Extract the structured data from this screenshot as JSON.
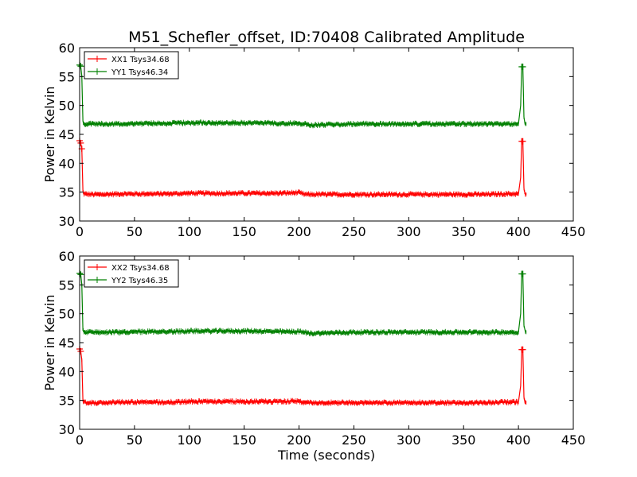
{
  "title": "M51_Schefler_offset, ID:70408 Calibrated Amplitude",
  "xlabel": "Time (seconds)",
  "colors": {
    "xx": "#ff0000",
    "yy": "#008000"
  },
  "chart_data": [
    {
      "type": "line",
      "ylabel": "Power in Kelvin",
      "xlim": [
        0,
        450
      ],
      "ylim": [
        30,
        60
      ],
      "xticks": [
        "0",
        "50",
        "100",
        "150",
        "200",
        "250",
        "300",
        "350",
        "400",
        "450"
      ],
      "yticks": [
        "30",
        "35",
        "40",
        "45",
        "50",
        "55",
        "60"
      ],
      "legend_position": "top-left",
      "series": [
        {
          "name": "XX1 Tsys34.68",
          "color": "#ff0000",
          "x": [
            0,
            1,
            2,
            3,
            4,
            10,
            20,
            40,
            60,
            80,
            100,
            120,
            140,
            160,
            180,
            200,
            205,
            210,
            230,
            250,
            270,
            290,
            310,
            330,
            350,
            370,
            390,
            400,
            402,
            403,
            404,
            405,
            406,
            407
          ],
          "y": [
            43.9,
            43.5,
            42.5,
            35.0,
            34.7,
            34.6,
            34.6,
            34.7,
            34.7,
            34.7,
            34.8,
            34.8,
            34.8,
            34.8,
            34.8,
            34.9,
            34.6,
            34.6,
            34.6,
            34.6,
            34.6,
            34.6,
            34.6,
            34.6,
            34.6,
            34.6,
            34.7,
            34.7,
            37.5,
            43.8,
            43.8,
            35.5,
            34.8,
            34.6
          ]
        },
        {
          "name": "YY1 Tsys46.34",
          "color": "#008000",
          "x": [
            0,
            1,
            2,
            3,
            4,
            10,
            20,
            40,
            60,
            80,
            100,
            120,
            140,
            160,
            180,
            200,
            205,
            210,
            230,
            250,
            270,
            290,
            310,
            330,
            350,
            370,
            390,
            400,
            402,
            403,
            404,
            405,
            406,
            407
          ],
          "y": [
            57.0,
            56.8,
            55.0,
            47.2,
            46.8,
            46.8,
            46.8,
            46.8,
            46.9,
            46.9,
            47.0,
            47.0,
            47.0,
            47.0,
            46.9,
            46.9,
            46.8,
            46.6,
            46.7,
            46.8,
            46.8,
            46.8,
            46.8,
            46.8,
            46.8,
            46.8,
            46.8,
            46.8,
            50.0,
            56.7,
            56.7,
            48.0,
            47.0,
            46.8
          ]
        }
      ]
    },
    {
      "type": "line",
      "ylabel": "Power in Kelvin",
      "xlim": [
        0,
        450
      ],
      "ylim": [
        30,
        60
      ],
      "xticks": [
        "0",
        "50",
        "100",
        "150",
        "200",
        "250",
        "300",
        "350",
        "400",
        "450"
      ],
      "yticks": [
        "30",
        "35",
        "40",
        "45",
        "50",
        "55",
        "60"
      ],
      "legend_position": "top-left",
      "series": [
        {
          "name": "XX2 Tsys34.68",
          "color": "#ff0000",
          "x": [
            0,
            1,
            2,
            3,
            4,
            10,
            20,
            40,
            60,
            80,
            100,
            120,
            140,
            160,
            180,
            200,
            205,
            210,
            230,
            250,
            270,
            290,
            310,
            330,
            350,
            370,
            390,
            400,
            402,
            403,
            404,
            405,
            406,
            407
          ],
          "y": [
            43.9,
            43.5,
            42.0,
            35.0,
            34.7,
            34.6,
            34.6,
            34.7,
            34.7,
            34.7,
            34.8,
            34.8,
            34.8,
            34.8,
            34.8,
            34.9,
            34.6,
            34.6,
            34.6,
            34.6,
            34.6,
            34.6,
            34.6,
            34.6,
            34.6,
            34.6,
            34.7,
            34.7,
            37.5,
            43.8,
            43.8,
            35.5,
            34.8,
            34.6
          ]
        },
        {
          "name": "YY2 Tsys46.35",
          "color": "#008000",
          "x": [
            0,
            1,
            2,
            3,
            4,
            10,
            20,
            40,
            60,
            80,
            100,
            120,
            140,
            160,
            180,
            200,
            205,
            210,
            230,
            250,
            270,
            290,
            310,
            330,
            350,
            370,
            390,
            400,
            402,
            403,
            404,
            405,
            406,
            407
          ],
          "y": [
            57.0,
            56.8,
            55.0,
            47.2,
            46.8,
            46.8,
            46.8,
            46.8,
            46.9,
            46.9,
            47.0,
            47.0,
            47.0,
            47.0,
            46.9,
            46.9,
            46.8,
            46.6,
            46.7,
            46.8,
            46.8,
            46.8,
            46.8,
            46.8,
            46.8,
            46.8,
            46.8,
            46.8,
            50.0,
            56.9,
            56.9,
            48.0,
            47.0,
            46.8
          ]
        }
      ]
    }
  ]
}
